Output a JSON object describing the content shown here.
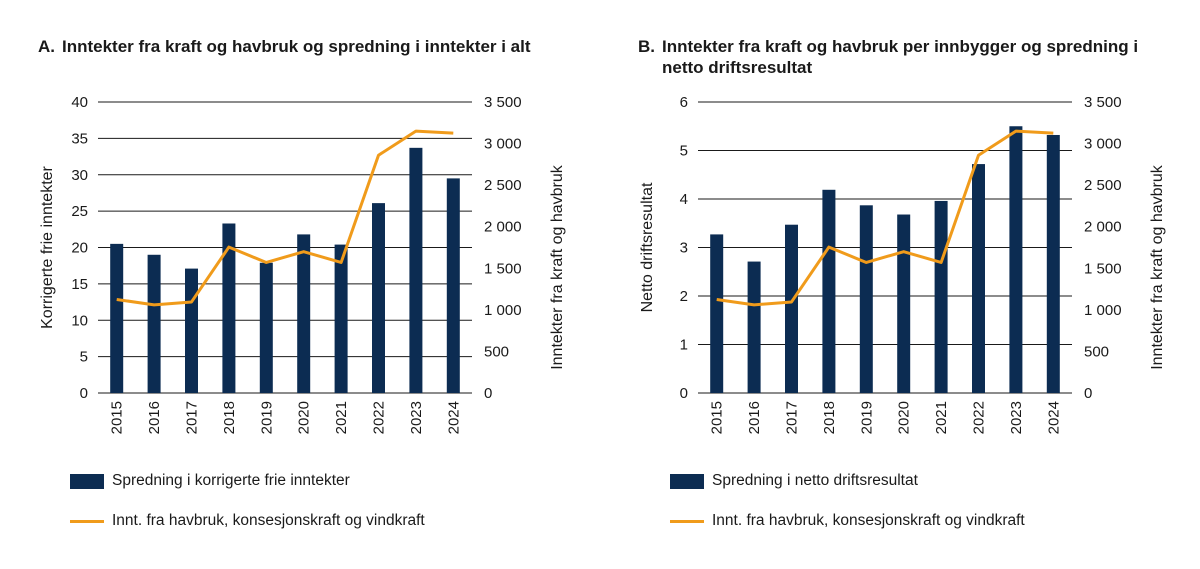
{
  "panels": [
    {
      "letter": "A.",
      "title": "Inntekter fra kraft og havbruk og spredning i inntekter i alt",
      "legend_bar": "Spredning i korrigerte frie inntekter",
      "legend_line": "Innt. fra havbruk, konsesjonskraft og vindkraft"
    },
    {
      "letter": "B.",
      "title": "Inntekter fra kraft og havbruk per innbygger og spredning i netto driftsresultat",
      "legend_bar": "Spredning i netto driftsresultat",
      "legend_line": "Innt. fra havbruk, konsesjonskraft og vindkraft"
    }
  ],
  "colors": {
    "bar": "#0c2c52",
    "line": "#f09b1b",
    "grid": "#1a1a1a"
  },
  "chart_data": [
    {
      "type": "bar+line",
      "categories": [
        "2015",
        "2016",
        "2017",
        "2018",
        "2019",
        "2020",
        "2021",
        "2022",
        "2023",
        "2024"
      ],
      "bar_series": {
        "name": "Spredning i korrigerte frie inntekter",
        "values": [
          20.5,
          19.0,
          17.1,
          23.3,
          17.9,
          21.8,
          20.4,
          26.1,
          33.7,
          29.5
        ]
      },
      "line_series": {
        "name": "Innt. fra havbruk, konsesjonskraft og vindkraft",
        "values": [
          1125,
          1060,
          1095,
          1755,
          1570,
          1700,
          1570,
          2860,
          3150,
          3125
        ]
      },
      "ylabel_left": "Korrigerte frie inntekter",
      "ylabel_right": "Inntekter  fra kraft og havbruk",
      "ylim_left": [
        0,
        40
      ],
      "yticks_left": [
        "0",
        "5",
        "10",
        "15",
        "20",
        "25",
        "30",
        "35",
        "40"
      ],
      "ylim_right": [
        0,
        3500
      ],
      "yticks_right": [
        "0",
        "500",
        "1 000",
        "1 500",
        "2 000",
        "2 500",
        "3 000",
        "3 500"
      ],
      "grid": true,
      "legend": "bottom"
    },
    {
      "type": "bar+line",
      "categories": [
        "2015",
        "2016",
        "2017",
        "2018",
        "2019",
        "2020",
        "2021",
        "2022",
        "2023",
        "2024"
      ],
      "bar_series": {
        "name": "Spredning i netto driftsresultat",
        "values": [
          3.27,
          2.71,
          3.47,
          4.19,
          3.87,
          3.68,
          3.96,
          4.72,
          5.5,
          5.32
        ]
      },
      "line_series": {
        "name": "Innt. fra havbruk, konsesjonskraft og vindkraft",
        "values": [
          1125,
          1060,
          1095,
          1755,
          1570,
          1700,
          1570,
          2860,
          3150,
          3125
        ]
      },
      "ylabel_left": "Netto driftsresultat",
      "ylabel_right": "Inntekter fra kraft og havbruk",
      "ylim_left": [
        0,
        6
      ],
      "yticks_left": [
        "0",
        "1",
        "2",
        "3",
        "4",
        "5",
        "6"
      ],
      "ylim_right": [
        0,
        3500
      ],
      "yticks_right": [
        "0",
        "500",
        "1 000",
        "1 500",
        "2 000",
        "2 500",
        "3 000",
        "3 500"
      ],
      "grid": true,
      "legend": "bottom"
    }
  ]
}
